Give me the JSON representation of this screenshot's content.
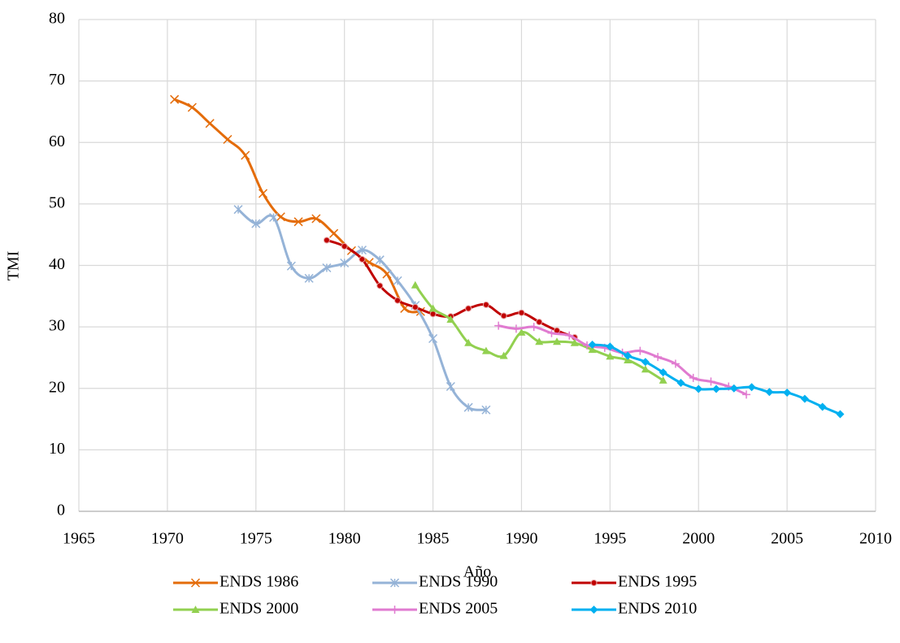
{
  "chart_data": {
    "type": "line",
    "x_label": "Año",
    "y_label": "TMI",
    "xlim": [
      1965,
      2010
    ],
    "xticks": [
      1965,
      1970,
      1975,
      1980,
      1985,
      1990,
      1995,
      2000,
      2005,
      2010
    ],
    "ylim": [
      0,
      80
    ],
    "yticks": [
      0,
      10,
      20,
      30,
      40,
      50,
      60,
      70,
      80
    ],
    "grid": true,
    "smooth": true,
    "legend": "bottom",
    "series": [
      {
        "name": "ENDS 1986",
        "color": "#e46c0a",
        "marker": "x",
        "x": [
          1970.4,
          1971.4,
          1972.4,
          1973.4,
          1974.4,
          1975.4,
          1976.4,
          1977.4,
          1978.4,
          1979.4,
          1980.4,
          1981.4,
          1982.4,
          1983.4,
          1984.3
        ],
        "values": [
          67.0,
          65.7,
          63.1,
          60.5,
          57.9,
          51.7,
          47.9,
          47.1,
          47.6,
          45.2,
          42.4,
          40.5,
          38.6,
          33.0,
          32.5
        ]
      },
      {
        "name": "ENDS 1990",
        "color": "#95b3d7",
        "marker": "star",
        "x": [
          1974,
          1975,
          1976,
          1977,
          1978,
          1979,
          1980,
          1981,
          1982,
          1983,
          1984,
          1985,
          1986,
          1987,
          1988
        ],
        "values": [
          49.1,
          46.8,
          47.8,
          39.9,
          37.9,
          39.6,
          40.4,
          42.5,
          40.9,
          37.5,
          33.5,
          28.1,
          20.3,
          16.9,
          16.5
        ]
      },
      {
        "name": "ENDS 1995",
        "color": "#c00000",
        "marker": "circle",
        "x": [
          1979,
          1980,
          1981,
          1982,
          1983,
          1984,
          1985,
          1986,
          1987,
          1988,
          1989,
          1990,
          1991,
          1992,
          1993
        ],
        "values": [
          44.1,
          43.1,
          41.0,
          36.7,
          34.3,
          33.2,
          32.1,
          31.7,
          33.0,
          33.6,
          31.8,
          32.3,
          30.8,
          29.4,
          28.3
        ]
      },
      {
        "name": "ENDS 2000",
        "color": "#92d050",
        "marker": "triangle",
        "x": [
          1984,
          1985,
          1986,
          1987,
          1988,
          1989,
          1990,
          1991,
          1992,
          1993,
          1994,
          1995,
          1996,
          1997,
          1998
        ],
        "values": [
          36.8,
          33.0,
          31.2,
          27.4,
          26.1,
          25.3,
          29.1,
          27.6,
          27.6,
          27.4,
          26.3,
          25.2,
          24.6,
          23.1,
          21.3
        ]
      },
      {
        "name": "ENDS 2005",
        "color": "#e07bd0",
        "marker": "plus",
        "x": [
          1988.7,
          1989.7,
          1990.7,
          1991.7,
          1992.7,
          1993.7,
          1994.7,
          1995.7,
          1996.7,
          1997.7,
          1998.7,
          1999.7,
          2000.7,
          2001.7,
          2002.7
        ],
        "values": [
          30.2,
          29.7,
          30.0,
          29.0,
          28.6,
          27.0,
          26.6,
          25.8,
          26.1,
          25.1,
          24.0,
          21.7,
          21.1,
          20.3,
          19.0
        ]
      },
      {
        "name": "ENDS 2010",
        "color": "#00b0f0",
        "marker": "diamond",
        "x": [
          1994,
          1995,
          1996,
          1997,
          1998,
          1999,
          2000,
          2001,
          2002,
          2003,
          2004,
          2005,
          2006,
          2007,
          2008
        ],
        "values": [
          27.1,
          26.8,
          25.3,
          24.3,
          22.6,
          20.9,
          19.9,
          19.9,
          20.0,
          20.2,
          19.4,
          19.3,
          18.3,
          17.0,
          15.8
        ]
      }
    ]
  }
}
